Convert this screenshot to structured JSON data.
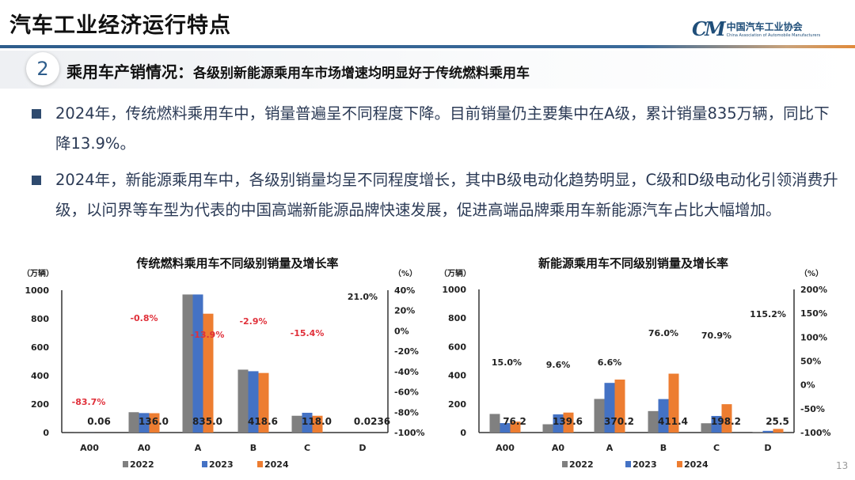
{
  "header": {
    "title": "汽车工业经济运行特点",
    "logo_cn": "中国汽车工业协会",
    "logo_en": "China Association of Automobile Manufacturers",
    "logo_mark": "CM"
  },
  "section": {
    "number": "2",
    "title": "乘用车产销情况：",
    "subtitle": "各级别新能源乘用车市场增速均明显好于传统燃料乘用车"
  },
  "bullets": [
    "2024年，传统燃料乘用车中，销量普遍呈不同程度下降。目前销量仍主要集中在A级，累计销量835万辆，同比下降13.9%。",
    "2024年，新能源乘用车中，各级别销量均呈不同程度增长，其中B级电动化趋势明显，C级和D级电动化引领消费升级，以问界等车型为代表的中国高端新能源品牌快速发展，促进高端品牌乘用车新能源汽车占比大幅增加。"
  ],
  "page_number": "13",
  "chart_data": [
    {
      "type": "bar",
      "title": "传统燃料乘用车不同级别销量及增长率",
      "ylabel": "（万辆）",
      "y2label": "（%）",
      "ylim": [
        0,
        1000
      ],
      "yticks": [
        "0",
        "200",
        "400",
        "600",
        "800",
        "1000"
      ],
      "y2lim": [
        -100,
        40
      ],
      "y2ticks": [
        "-100%",
        "-80%",
        "-60%",
        "-40%",
        "-20%",
        "0%",
        "20%",
        "40%"
      ],
      "categories": [
        "A00",
        "A0",
        "A",
        "B",
        "C",
        "D"
      ],
      "series": [
        {
          "name": "2022",
          "color": "#808080",
          "values": [
            0.3,
            143,
            970,
            442,
            118,
            0.02
          ]
        },
        {
          "name": "2023",
          "color": "#4472c4",
          "values": [
            0.37,
            137,
            970,
            431,
            139,
            0.0195
          ]
        },
        {
          "name": "2024",
          "color": "#ed7d31",
          "values": [
            0.06,
            136.0,
            835.0,
            418.6,
            118.0,
            0.0236
          ]
        }
      ],
      "value_labels": [
        "0.06",
        "136.0",
        "835.0",
        "418.6",
        "118.0",
        "0.0236"
      ],
      "growth_labels": [
        "-83.7%",
        "-0.8%",
        "-13.9%",
        "-2.9%",
        "-15.4%",
        "21.0%"
      ],
      "growth_colors": [
        "#e0303a",
        "#e0303a",
        "#e0303a",
        "#e0303a",
        "#e0303a",
        "#222222"
      ],
      "legend": "bottom",
      "grid": false
    },
    {
      "type": "bar",
      "title": "新能源乘用车不同级别销量及增长率",
      "ylabel": "（万辆）",
      "y2label": "（%）",
      "ylim": [
        0,
        1000
      ],
      "yticks": [
        "0",
        "200",
        "400",
        "600",
        "800",
        "1000"
      ],
      "y2lim": [
        -100,
        200
      ],
      "y2ticks": [
        "-100%",
        "-50%",
        "0%",
        "50%",
        "100%",
        "150%",
        "200%"
      ],
      "categories": [
        "A00",
        "A0",
        "A",
        "B",
        "C",
        "D"
      ],
      "series": [
        {
          "name": "2022",
          "color": "#808080",
          "values": [
            130,
            58,
            235,
            150,
            65,
            3
          ]
        },
        {
          "name": "2023",
          "color": "#4472c4",
          "values": [
            66,
            127,
            347,
            234,
            116,
            11.9
          ]
        },
        {
          "name": "2024",
          "color": "#ed7d31",
          "values": [
            76.2,
            139.6,
            370.2,
            411.4,
            198.2,
            25.5
          ]
        }
      ],
      "value_labels": [
        "76.2",
        "139.6",
        "370.2",
        "411.4",
        "198.2",
        "25.5"
      ],
      "growth_labels": [
        "15.0%",
        "9.6%",
        "6.6%",
        "76.0%",
        "70.9%",
        "115.2%"
      ],
      "growth_colors": [
        "#222222",
        "#222222",
        "#222222",
        "#222222",
        "#222222",
        "#222222"
      ],
      "legend": "bottom",
      "grid": false
    }
  ]
}
